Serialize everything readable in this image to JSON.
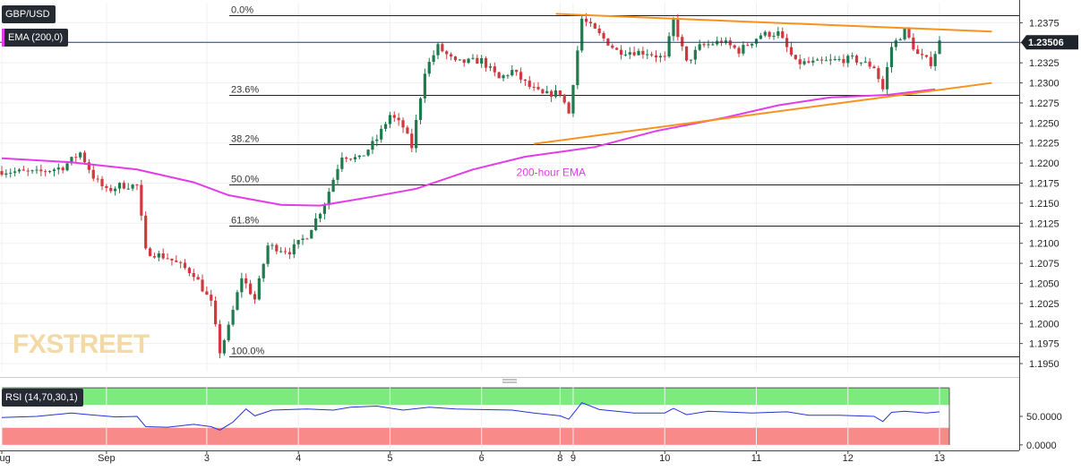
{
  "header": {
    "symbol": "GBP/USD",
    "indicator": "EMA (200,0)",
    "rsi_label": "RSI (14,70,30,1)"
  },
  "watermark": {
    "part1": "FX",
    "part2": "STREET"
  },
  "colors": {
    "candle_up": "#1f7a4d",
    "candle_down": "#d0393e",
    "ema": "#e23be8",
    "trendline": "#f6931f",
    "rsi_line": "#2433d6",
    "rsi_overbought_zone": "#7dea7d",
    "rsi_oversold_zone": "#f88a8a",
    "fib_line": "#222222",
    "price_tag": "#1f232b"
  },
  "chart_data": {
    "type": "candlestick",
    "symbol": "GBP/USD",
    "price_axis": {
      "ylim": [
        1.194,
        1.24
      ],
      "ticks": [
        "1.2375",
        "1.2350",
        "1.2325",
        "1.2300",
        "1.2275",
        "1.2250",
        "1.2225",
        "1.2200",
        "1.2175",
        "1.2150",
        "1.2125",
        "1.2100",
        "1.2075",
        "1.2050",
        "1.2025",
        "1.2000",
        "1.1975",
        "1.1950"
      ]
    },
    "x_axis": {
      "ticks": [
        {
          "label": "Aug",
          "bar": 0
        },
        {
          "label": "Sep",
          "bar": 24
        },
        {
          "label": "3",
          "bar": 47
        },
        {
          "label": "4",
          "bar": 68
        },
        {
          "label": "5",
          "bar": 89
        },
        {
          "label": "6",
          "bar": 110
        },
        {
          "label": "8",
          "bar": 128
        },
        {
          "label": "9",
          "bar": 131
        },
        {
          "label": "10",
          "bar": 152
        },
        {
          "label": "11",
          "bar": 173
        },
        {
          "label": "12",
          "bar": 194
        },
        {
          "label": "13",
          "bar": 215
        }
      ]
    },
    "last_price": "1.23506",
    "fibonacci": [
      {
        "label": "0.0%",
        "price": 1.2384
      },
      {
        "label": "23.6%",
        "price": 1.2285
      },
      {
        "label": "38.2%",
        "price": 1.2224
      },
      {
        "label": "50.0%",
        "price": 1.2173
      },
      {
        "label": "61.8%",
        "price": 1.2122
      },
      {
        "label": "100.0%",
        "price": 1.1959
      }
    ],
    "trendlines": [
      {
        "name": "resistance",
        "from": {
          "bar": 127,
          "price": 1.2386
        },
        "to": {
          "bar": 227,
          "price": 1.2364
        }
      },
      {
        "name": "support",
        "from": {
          "bar": 122,
          "price": 1.2224
        },
        "to": {
          "bar": 227,
          "price": 1.23
        }
      }
    ],
    "ema_label": "200-hour EMA",
    "ema_200": [
      {
        "bar": 0,
        "price": 1.2206
      },
      {
        "bar": 16,
        "price": 1.2201
      },
      {
        "bar": 31,
        "price": 1.2192
      },
      {
        "bar": 44,
        "price": 1.2176
      },
      {
        "bar": 52,
        "price": 1.216
      },
      {
        "bar": 64,
        "price": 1.2148
      },
      {
        "bar": 73,
        "price": 1.2147
      },
      {
        "bar": 85,
        "price": 1.2158
      },
      {
        "bar": 95,
        "price": 1.2168
      },
      {
        "bar": 108,
        "price": 1.2192
      },
      {
        "bar": 120,
        "price": 1.2208
      },
      {
        "bar": 136,
        "price": 1.222
      },
      {
        "bar": 150,
        "price": 1.224
      },
      {
        "bar": 166,
        "price": 1.2257
      },
      {
        "bar": 178,
        "price": 1.2272
      },
      {
        "bar": 190,
        "price": 1.2282
      },
      {
        "bar": 203,
        "price": 1.2285
      },
      {
        "bar": 214,
        "price": 1.2292
      }
    ],
    "price_path": [
      [
        0,
        1.219
      ],
      [
        8,
        1.2188
      ],
      [
        14,
        1.2195
      ],
      [
        18,
        1.2213
      ],
      [
        21,
        1.2183
      ],
      [
        24,
        1.2165
      ],
      [
        27,
        1.2172
      ],
      [
        31,
        1.2172
      ],
      [
        33,
        1.209
      ],
      [
        38,
        1.2082
      ],
      [
        44,
        1.2062
      ],
      [
        48,
        1.2025
      ],
      [
        50,
        1.1965
      ],
      [
        52,
        1.1995
      ],
      [
        55,
        1.2058
      ],
      [
        58,
        1.203
      ],
      [
        61,
        1.2097
      ],
      [
        66,
        1.209
      ],
      [
        70,
        1.211
      ],
      [
        74,
        1.215
      ],
      [
        78,
        1.221
      ],
      [
        82,
        1.2205
      ],
      [
        86,
        1.223
      ],
      [
        89,
        1.226
      ],
      [
        92,
        1.2245
      ],
      [
        94,
        1.222
      ],
      [
        97,
        1.2315
      ],
      [
        100,
        1.2345
      ],
      [
        104,
        1.2325
      ],
      [
        110,
        1.2328
      ],
      [
        114,
        1.2305
      ],
      [
        117,
        1.2315
      ],
      [
        121,
        1.2295
      ],
      [
        124,
        1.2285
      ],
      [
        128,
        1.2288
      ],
      [
        130,
        1.2262
      ],
      [
        133,
        1.238
      ],
      [
        136,
        1.2365
      ],
      [
        141,
        1.234
      ],
      [
        148,
        1.2338
      ],
      [
        152,
        1.233
      ],
      [
        154,
        1.2378
      ],
      [
        157,
        1.2325
      ],
      [
        160,
        1.2345
      ],
      [
        165,
        1.2352
      ],
      [
        169,
        1.234
      ],
      [
        174,
        1.236
      ],
      [
        178,
        1.2362
      ],
      [
        182,
        1.2325
      ],
      [
        187,
        1.2325
      ],
      [
        191,
        1.2328
      ],
      [
        195,
        1.233
      ],
      [
        200,
        1.232
      ],
      [
        202,
        1.2292
      ],
      [
        204,
        1.2345
      ],
      [
        207,
        1.2365
      ],
      [
        210,
        1.2335
      ],
      [
        213,
        1.2325
      ],
      [
        215,
        1.2351
      ]
    ],
    "rsi": {
      "label": "RSI (14,70,30,1)",
      "ylim": [
        -5,
        105
      ],
      "ticks": [
        "50.0000",
        "0.0000"
      ],
      "overbought": 70,
      "oversold": 30,
      "path": [
        [
          0,
          48
        ],
        [
          8,
          50
        ],
        [
          16,
          56
        ],
        [
          20,
          53
        ],
        [
          26,
          49
        ],
        [
          31,
          50
        ],
        [
          33,
          32
        ],
        [
          38,
          31
        ],
        [
          44,
          36
        ],
        [
          48,
          32
        ],
        [
          50,
          26
        ],
        [
          53,
          40
        ],
        [
          56,
          63
        ],
        [
          58,
          51
        ],
        [
          62,
          61
        ],
        [
          70,
          63
        ],
        [
          76,
          61
        ],
        [
          80,
          66
        ],
        [
          86,
          68
        ],
        [
          92,
          61
        ],
        [
          98,
          66
        ],
        [
          104,
          63
        ],
        [
          110,
          62
        ],
        [
          117,
          61
        ],
        [
          122,
          56
        ],
        [
          128,
          51
        ],
        [
          130,
          45
        ],
        [
          133,
          74
        ],
        [
          137,
          62
        ],
        [
          145,
          56
        ],
        [
          152,
          56
        ],
        [
          154,
          64
        ],
        [
          157,
          53
        ],
        [
          162,
          59
        ],
        [
          172,
          56
        ],
        [
          180,
          58
        ],
        [
          185,
          52
        ],
        [
          192,
          52
        ],
        [
          200,
          50
        ],
        [
          202,
          41
        ],
        [
          204,
          57
        ],
        [
          207,
          59
        ],
        [
          212,
          56
        ],
        [
          215,
          58
        ]
      ]
    }
  }
}
